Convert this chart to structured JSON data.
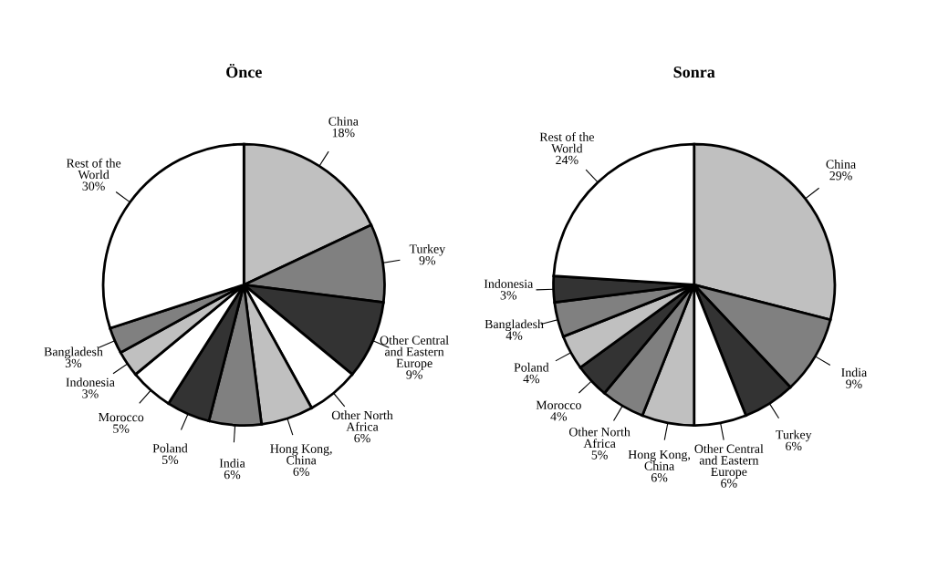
{
  "chart_data": [
    {
      "type": "pie",
      "title": "Önce",
      "categories": [
        "China",
        "Turkey",
        "Other Central\nand Eastern\nEurope",
        "Other North\nAfrica",
        "Hong Kong,\nChina",
        "India",
        "Poland",
        "Morocco",
        "Indonesia",
        "Bangladesh",
        "Rest of the\nWorld"
      ],
      "values": [
        18,
        9,
        9,
        6,
        6,
        6,
        5,
        5,
        3,
        3,
        30
      ],
      "value_labels": [
        "18%",
        "9%",
        "9%",
        "6%",
        "6%",
        "6%",
        "5%",
        "5%",
        "3%",
        "3%",
        "30%"
      ],
      "colors": [
        "#c0c0c0",
        "#808080",
        "#333333",
        "#ffffff",
        "#c0c0c0",
        "#808080",
        "#333333",
        "#ffffff",
        "#c0c0c0",
        "#808080",
        "#ffffff"
      ]
    },
    {
      "type": "pie",
      "title": "Sonra",
      "categories": [
        "China",
        "India",
        "Turkey",
        "Other Central\nand Eastern\nEurope",
        "Hong Kong,\nChina",
        "Other North\nAfrica",
        "Morocco",
        "Poland",
        "Bangladesh",
        "Indonesia",
        "Rest of the\nWorld"
      ],
      "values": [
        29,
        9,
        6,
        6,
        6,
        5,
        4,
        4,
        4,
        3,
        24
      ],
      "value_labels": [
        "29%",
        "9%",
        "6%",
        "6%",
        "6%",
        "5%",
        "4%",
        "4%",
        "4%",
        "3%",
        "24%"
      ],
      "colors": [
        "#c0c0c0",
        "#808080",
        "#333333",
        "#ffffff",
        "#c0c0c0",
        "#808080",
        "#333333",
        "#c0c0c0",
        "#808080",
        "#333333",
        "#ffffff"
      ]
    }
  ]
}
